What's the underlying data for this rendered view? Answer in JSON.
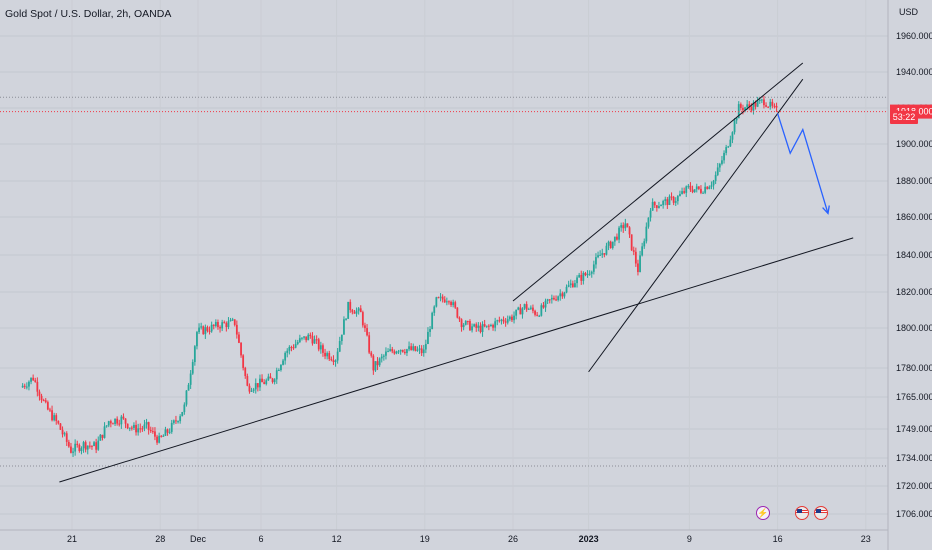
{
  "header": {
    "symbol": "Gold Spot / U.S. Dollar",
    "interval": "2h",
    "exchange": "OANDA",
    "currency": "USD"
  },
  "countdown": "53:22",
  "colors": {
    "background": "#d1d4dc",
    "bull": "#26a69a",
    "bear": "#f23645",
    "trendline": "#131722",
    "projection": "#2962ff",
    "price_tag": "#f23645"
  },
  "events": [
    {
      "name": "bolt-icon",
      "glyph": "⚡"
    },
    {
      "name": "us-flag-icon",
      "glyph": ""
    },
    {
      "name": "us-flag-icon",
      "glyph": ""
    }
  ],
  "chart_data": {
    "type": "candlestick",
    "y_tick_labels": [
      "1960.000",
      "1940.000",
      "1920.000",
      "1900.000",
      "1880.000",
      "1860.000",
      "1840.000",
      "1820.000",
      "1800.000",
      "1780.000",
      "1765.000",
      "1749.000",
      "1734.000",
      "1720.000",
      "1706.000"
    ],
    "x_tick_labels": [
      "21",
      "28",
      "Dec",
      "6",
      "12",
      "19",
      "26",
      "2023",
      "9",
      "16",
      "23"
    ],
    "ylim": [
      1700,
      1970
    ],
    "current_price": 1918,
    "price_path": [
      [
        "2022-11-17",
        1770
      ],
      [
        "2022-11-18",
        1775
      ],
      [
        "2022-11-19",
        1760
      ],
      [
        "2022-11-20",
        1751
      ],
      [
        "2022-11-21",
        1738
      ],
      [
        "2022-11-22",
        1741
      ],
      [
        "2022-11-23",
        1740
      ],
      [
        "2022-11-24",
        1753
      ],
      [
        "2022-11-25",
        1754
      ],
      [
        "2022-11-26",
        1749
      ],
      [
        "2022-11-27",
        1750
      ],
      [
        "2022-11-28",
        1743
      ],
      [
        "2022-11-29",
        1750
      ],
      [
        "2022-11-30",
        1760
      ],
      [
        "2022-12-01",
        1798
      ],
      [
        "2022-12-02",
        1800
      ],
      [
        "2022-12-03",
        1802
      ],
      [
        "2022-12-04",
        1803
      ],
      [
        "2022-12-05",
        1770
      ],
      [
        "2022-12-06",
        1772
      ],
      [
        "2022-12-07",
        1774
      ],
      [
        "2022-12-08",
        1788
      ],
      [
        "2022-12-09",
        1793
      ],
      [
        "2022-12-10",
        1796
      ],
      [
        "2022-12-11",
        1788
      ],
      [
        "2022-12-12",
        1785
      ],
      [
        "2022-12-13",
        1812
      ],
      [
        "2022-12-14",
        1808
      ],
      [
        "2022-12-15",
        1780
      ],
      [
        "2022-12-16",
        1787
      ],
      [
        "2022-12-17",
        1790
      ],
      [
        "2022-12-18",
        1789
      ],
      [
        "2022-12-19",
        1788
      ],
      [
        "2022-12-20",
        1815
      ],
      [
        "2022-12-21",
        1817
      ],
      [
        "2022-12-22",
        1803
      ],
      [
        "2022-12-23",
        1800
      ],
      [
        "2022-12-24",
        1800
      ],
      [
        "2022-12-25",
        1804
      ],
      [
        "2022-12-26",
        1806
      ],
      [
        "2022-12-27",
        1812
      ],
      [
        "2022-12-28",
        1808
      ],
      [
        "2022-12-29",
        1815
      ],
      [
        "2022-12-30",
        1820
      ],
      [
        "2022-12-31",
        1826
      ],
      [
        "2023-01-01",
        1830
      ],
      [
        "2023-01-02",
        1840
      ],
      [
        "2023-01-03",
        1847
      ],
      [
        "2023-01-04",
        1857
      ],
      [
        "2023-01-05",
        1832
      ],
      [
        "2023-01-06",
        1866
      ],
      [
        "2023-01-07",
        1868
      ],
      [
        "2023-01-08",
        1870
      ],
      [
        "2023-01-09",
        1876
      ],
      [
        "2023-01-10",
        1875
      ],
      [
        "2023-01-11",
        1880
      ],
      [
        "2023-01-12",
        1897
      ],
      [
        "2023-01-13",
        1920
      ],
      [
        "2023-01-14",
        1921
      ],
      [
        "2023-01-15",
        1924
      ],
      [
        "2023-01-16",
        1918
      ]
    ],
    "trendlines": [
      {
        "name": "support-trendline",
        "from": [
          "2022-11-20",
          1722
        ],
        "to": [
          "2023-01-22",
          1849
        ]
      },
      {
        "name": "channel-upper-line",
        "from": [
          "2022-12-26",
          1815
        ],
        "to": [
          "2023-01-18",
          1945
        ]
      },
      {
        "name": "channel-lower-line",
        "from": [
          "2023-01-01",
          1778
        ],
        "to": [
          "2023-01-18",
          1936
        ]
      }
    ],
    "projection": [
      [
        "2023-01-16",
        1917
      ],
      [
        "2023-01-17",
        1895
      ],
      [
        "2023-01-18",
        1908
      ],
      [
        "2023-01-20",
        1862
      ]
    ],
    "grid": true
  }
}
